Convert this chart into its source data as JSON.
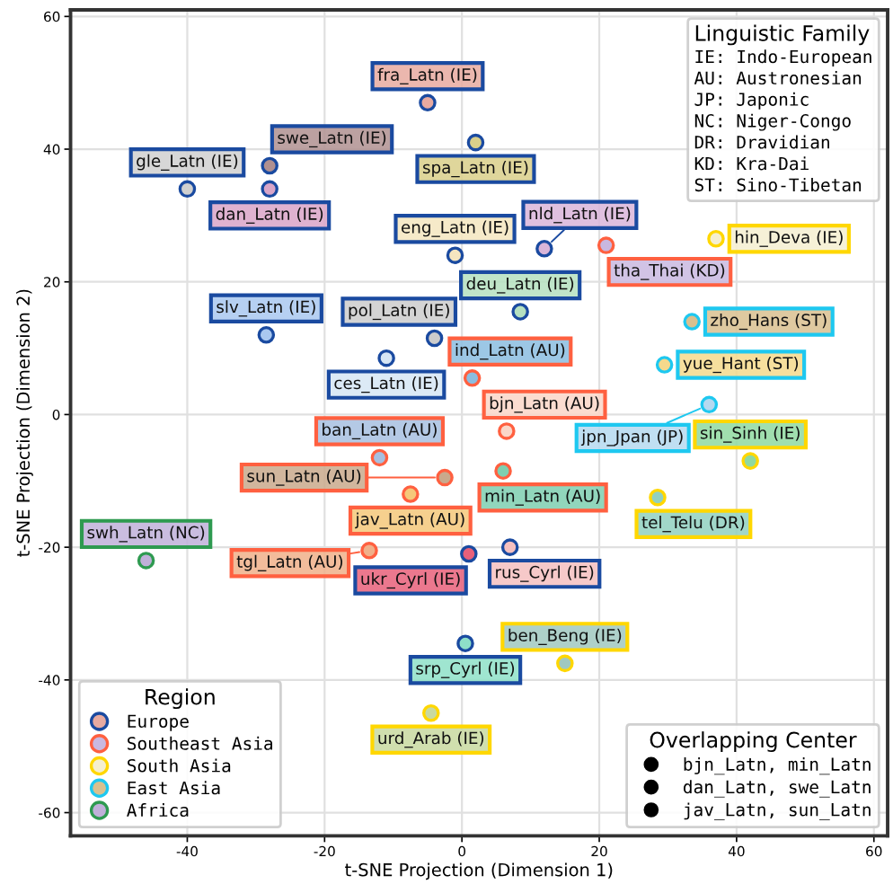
{
  "chart_data": {
    "type": "scatter",
    "xlabel": "t-SNE Projection (Dimension 1)",
    "ylabel": "t-SNE Projection (Dimension 2)",
    "xlim": [
      -57,
      62
    ],
    "ylim": [
      -63.5,
      61
    ],
    "xticks": [
      -40,
      -20,
      0,
      20,
      40,
      60
    ],
    "yticks": [
      -60,
      -40,
      -20,
      0,
      20,
      40,
      60
    ],
    "grid": true,
    "legend": "bottom left",
    "legend_title": "Region",
    "annotations": [
      "Linguistic Family",
      "IE: Indo-European",
      "AU: Austronesian",
      "JP: Japonic",
      "NC: Niger-Congo",
      "DR: Dravidian",
      "KD: Kra-Dai",
      "ST: Sino-Tibetan",
      "Overlapping Center",
      "bjn_Latn, min_Latn",
      "dan_Latn, swe_Latn",
      "jav_Latn, sun_Latn"
    ],
    "series": [
      {
        "name": "Europe",
        "color": "#1a4aa0",
        "x": [
          -5,
          2,
          -40,
          -28,
          -28,
          -1,
          12,
          8.5,
          -4,
          -28.5,
          -11,
          7,
          1,
          0.5
        ],
        "values": [
          47,
          41,
          34,
          34,
          37.5,
          24,
          25,
          15.5,
          11.5,
          12,
          8.5,
          -20,
          -21,
          -34.5
        ],
        "colors": [
          "#e8aaa0",
          "#d9cf8a",
          "#d0d0d0",
          "#d9a5c8",
          "#b09090",
          "#f5e6c0",
          "#d9b5d9",
          "#b5e0c0",
          "#cccccc",
          "#a9c8f0",
          "#d6e6f5",
          "#f5c0c0",
          "#e8607a",
          "#8ee0c8"
        ],
        "value_labels": [
          "fra_Latn (IE)",
          "spa_Latn (IE)",
          "gle_Latn (IE)",
          "dan_Latn (IE)",
          "swe_Latn (IE)",
          "eng_Latn (IE)",
          "nld_Latn (IE)",
          "deu_Latn (IE)",
          "pol_Latn (IE)",
          "slv_Latn (IE)",
          "ces_Latn (IE)",
          "rus_Cyrl (IE)",
          "ukr_Cyrl (IE)",
          "srp_Cyrl (IE)"
        ]
      },
      {
        "name": "Southeast Asia",
        "color": "#ff6040",
        "x": [
          21,
          1.5,
          6.5,
          -12,
          6,
          -2.5,
          -7.5,
          -13.5
        ],
        "values": [
          25.5,
          5.5,
          -2.5,
          -6.5,
          -8.5,
          -9.5,
          -12,
          -20.5
        ],
        "colors": [
          "#c9b8e0",
          "#8bbde0",
          "#fad6c8",
          "#a7bfe0",
          "#7ecfb0",
          "#c9a98c",
          "#f5c87a",
          "#f0b08a"
        ],
        "value_labels": [
          "tha_Thai (KD)",
          "ind_Latn (AU)",
          "bjn_Latn (AU)",
          "ban_Latn (AU)",
          "min_Latn (AU)",
          "sun_Latn (AU)",
          "jav_Latn (AU)",
          "tgl_Latn (AU)"
        ]
      },
      {
        "name": "South Asia",
        "color": "#ffd700",
        "x": [
          37,
          42,
          28.5,
          15,
          -4.5
        ],
        "values": [
          26.5,
          -7,
          -12.5,
          -37.5,
          -45
        ],
        "colors": [
          "#f5efd0",
          "#8fd9a0",
          "#90d0c0",
          "#a0c8c0",
          "#c8d9a0"
        ],
        "value_labels": [
          "hin_Deva (IE)",
          "sin_Sinh (IE)",
          "tel_Telu (DR)",
          "ben_Beng (IE)",
          "urd_Arab (IE)"
        ]
      },
      {
        "name": "East Asia",
        "color": "#1ec8f0",
        "x": [
          33.5,
          29.5,
          36
        ],
        "values": [
          14,
          7.5,
          1.5
        ],
        "colors": [
          "#d9c08f",
          "#f5d98c",
          "#b5d9f0"
        ],
        "value_labels": [
          "zho_Hans (ST)",
          "yue_Hant (ST)",
          "jpn_Jpan (JP)"
        ]
      },
      {
        "name": "Africa",
        "color": "#2e9a50",
        "x": [
          -46
        ],
        "values": [
          -22
        ],
        "colors": [
          "#c0b0d9"
        ],
        "value_labels": [
          "swh_Latn (NC)"
        ]
      }
    ]
  }
}
